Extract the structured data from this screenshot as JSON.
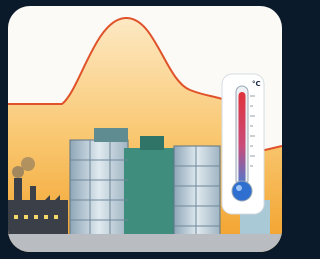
{
  "thermometer": {
    "unit": "°C"
  }
}
